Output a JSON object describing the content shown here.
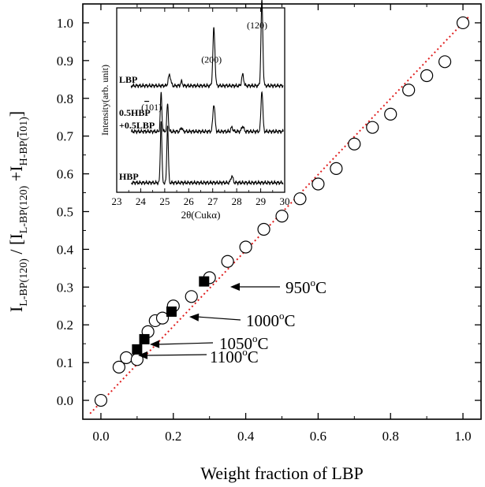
{
  "chart_data": [
    {
      "type": "scatter",
      "xlabel": "Weight fraction of LBP",
      "ylabel_parts": {
        "main": "I",
        "sub1": "L-BP(120)",
        "mid": " / [I",
        "sub2": "L-BP(120)",
        "plus": " +I",
        "sub3": "H-BP(",
        "sub3_overbar": "1",
        "sub3_post": "01)",
        "close": "]"
      },
      "xlim": [
        -0.05,
        1.05
      ],
      "ylim": [
        -0.05,
        1.05
      ],
      "xticks": [
        "0.0",
        "0.2",
        "0.4",
        "0.6",
        "0.8",
        "1.0"
      ],
      "yticks": [
        "0.0",
        "0.1",
        "0.2",
        "0.3",
        "0.4",
        "0.5",
        "0.6",
        "0.7",
        "0.8",
        "0.9",
        "1.0"
      ],
      "grid": false,
      "series": [
        {
          "marker": "open-circle",
          "x": [
            0.0,
            0.05,
            0.07,
            0.1,
            0.13,
            0.15,
            0.17,
            0.2,
            0.25,
            0.3,
            0.35,
            0.4,
            0.45,
            0.5,
            0.55,
            0.6,
            0.65,
            0.7,
            0.75,
            0.8,
            0.85,
            0.9,
            0.95,
            1.0
          ],
          "y": [
            0.0,
            0.088,
            0.113,
            0.108,
            0.182,
            0.211,
            0.218,
            0.25,
            0.275,
            0.325,
            0.368,
            0.406,
            0.453,
            0.488,
            0.534,
            0.573,
            0.614,
            0.679,
            0.723,
            0.758,
            0.822,
            0.86,
            0.897,
            1.0
          ]
        },
        {
          "marker": "filled-square",
          "x": [
            0.1,
            0.12,
            0.195,
            0.285
          ],
          "y": [
            0.135,
            0.162,
            0.235,
            0.315
          ]
        },
        {
          "marker": "none",
          "line": "red-dotted",
          "x": [
            -0.03,
            1.02
          ],
          "y": [
            -0.035,
            1.02
          ]
        }
      ],
      "annotations": [
        {
          "label": "950",
          "sup": "o",
          "unit": "C",
          "x": 0.285,
          "y": 0.315
        },
        {
          "label": "1000",
          "sup": "o",
          "unit": "C",
          "x": 0.195,
          "y": 0.235
        },
        {
          "label": "1050",
          "sup": "o",
          "unit": "C",
          "x": 0.12,
          "y": 0.162
        },
        {
          "label": "1100",
          "sup": "o",
          "unit": "C",
          "x": 0.1,
          "y": 0.135
        }
      ]
    },
    {
      "type": "line",
      "xlabel": "2θ(Cukα)",
      "ylabel": "Intensity(arb. unit)",
      "xlim": [
        23,
        30
      ],
      "xticks": [
        "23",
        "24",
        "25",
        "26",
        "27",
        "28",
        "29",
        "30"
      ],
      "series": [
        {
          "label_lines": [
            "LBP"
          ],
          "baseline": 0.78,
          "peaks": [
            [
              25.2,
              0.08,
              0.07
            ],
            [
              25.7,
              0.03,
              0.05
            ],
            [
              27.05,
              0.42,
              0.06
            ],
            [
              28.25,
              0.08,
              0.06
            ],
            [
              29.05,
              0.62,
              0.055
            ]
          ]
        },
        {
          "label_lines": [
            "0.5HBP",
            "+0.5LBP"
          ],
          "baseline": 0.445,
          "peaks": [
            [
              24.85,
              0.28,
              0.045
            ],
            [
              25.12,
              0.2,
              0.045
            ],
            [
              25.7,
              0.03,
              0.05
            ],
            [
              27.05,
              0.2,
              0.06
            ],
            [
              27.8,
              0.03,
              0.06
            ],
            [
              28.25,
              0.04,
              0.06
            ],
            [
              29.05,
              0.3,
              0.055
            ]
          ]
        },
        {
          "label_lines": [
            "HBP"
          ],
          "baseline": 0.07,
          "peaks": [
            [
              24.85,
              0.45,
              0.045
            ],
            [
              25.12,
              0.42,
              0.045
            ],
            [
              27.8,
              0.05,
              0.06
            ]
          ]
        }
      ],
      "peak_labels": [
        {
          "text": "(200)",
          "x": 26.95,
          "y": 0.95
        },
        {
          "text": "(120)",
          "x": 28.85,
          "y": 1.2
        },
        {
          "text": "(",
          "overbar": "1",
          "post": "01)",
          "x": 24.45,
          "y": 0.6
        }
      ]
    }
  ]
}
